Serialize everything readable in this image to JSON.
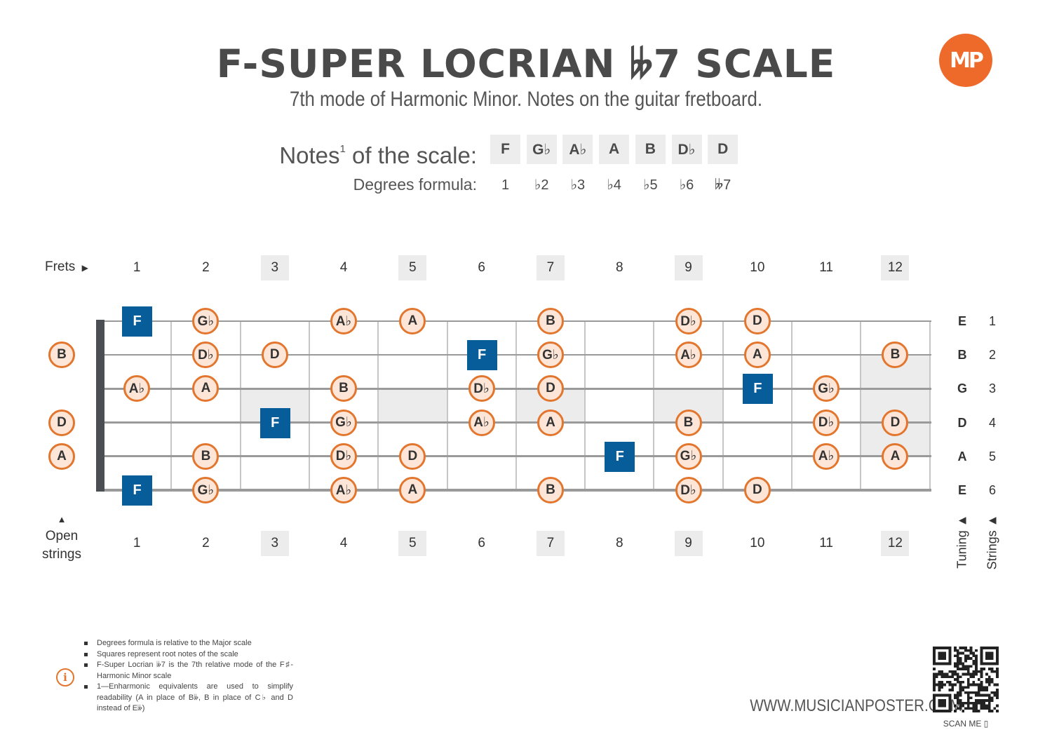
{
  "title": "F-SUPER LOCRIAN 𝄫7 SCALE",
  "subtitle": "7th mode of Harmonic Minor. Notes on the guitar fretboard.",
  "logo_text": "MP",
  "notes_label": "Notes",
  "notes_label_sup": "1",
  "notes_label_tail": " of the scale:",
  "degrees_label": "Degrees formula:",
  "scale_notes": [
    "F",
    "G♭",
    "A♭",
    "A",
    "B",
    "D♭",
    "D"
  ],
  "degrees": [
    "1",
    "♭2",
    "♭3",
    "♭4",
    "♭5",
    "♭6",
    "𝄫7"
  ],
  "frets_label": "Frets",
  "frets_arrow": "▶",
  "fret_numbers": [
    "1",
    "2",
    "3",
    "4",
    "5",
    "6",
    "7",
    "8",
    "9",
    "10",
    "11",
    "12"
  ],
  "highlighted_frets": [
    3,
    5,
    7,
    9,
    12
  ],
  "open_strings_arrow": "▲",
  "open_strings_line1": "Open",
  "open_strings_line2": "strings",
  "tuning_label": "Tuning ▲",
  "strings_label": "Strings ▲",
  "tuning": [
    "E",
    "B",
    "G",
    "D",
    "A",
    "E"
  ],
  "string_numbers": [
    "1",
    "2",
    "3",
    "4",
    "5",
    "6"
  ],
  "colors": {
    "accent": "#e2762e",
    "dot_fill": "#fde6d7",
    "root": "#075d9a",
    "text": "#4a4a4a"
  },
  "fretboard": [
    {
      "string": 1,
      "fret": 1,
      "note": "F",
      "root": true
    },
    {
      "string": 1,
      "fret": 2,
      "note": "G♭"
    },
    {
      "string": 1,
      "fret": 4,
      "note": "A♭"
    },
    {
      "string": 1,
      "fret": 5,
      "note": "A"
    },
    {
      "string": 1,
      "fret": 7,
      "note": "B"
    },
    {
      "string": 1,
      "fret": 9,
      "note": "D♭"
    },
    {
      "string": 1,
      "fret": 10,
      "note": "D"
    },
    {
      "string": 2,
      "fret": 0,
      "note": "B"
    },
    {
      "string": 2,
      "fret": 2,
      "note": "D♭"
    },
    {
      "string": 2,
      "fret": 3,
      "note": "D"
    },
    {
      "string": 2,
      "fret": 6,
      "note": "F",
      "root": true
    },
    {
      "string": 2,
      "fret": 7,
      "note": "G♭"
    },
    {
      "string": 2,
      "fret": 9,
      "note": "A♭"
    },
    {
      "string": 2,
      "fret": 10,
      "note": "A"
    },
    {
      "string": 2,
      "fret": 12,
      "note": "B"
    },
    {
      "string": 3,
      "fret": 1,
      "note": "A♭"
    },
    {
      "string": 3,
      "fret": 2,
      "note": "A"
    },
    {
      "string": 3,
      "fret": 4,
      "note": "B"
    },
    {
      "string": 3,
      "fret": 6,
      "note": "D♭"
    },
    {
      "string": 3,
      "fret": 7,
      "note": "D"
    },
    {
      "string": 3,
      "fret": 10,
      "note": "F",
      "root": true
    },
    {
      "string": 3,
      "fret": 11,
      "note": "G♭"
    },
    {
      "string": 4,
      "fret": 0,
      "note": "D"
    },
    {
      "string": 4,
      "fret": 3,
      "note": "F",
      "root": true
    },
    {
      "string": 4,
      "fret": 4,
      "note": "G♭"
    },
    {
      "string": 4,
      "fret": 6,
      "note": "A♭"
    },
    {
      "string": 4,
      "fret": 7,
      "note": "A"
    },
    {
      "string": 4,
      "fret": 9,
      "note": "B"
    },
    {
      "string": 4,
      "fret": 11,
      "note": "D♭"
    },
    {
      "string": 4,
      "fret": 12,
      "note": "D"
    },
    {
      "string": 5,
      "fret": 0,
      "note": "A"
    },
    {
      "string": 5,
      "fret": 2,
      "note": "B"
    },
    {
      "string": 5,
      "fret": 4,
      "note": "D♭"
    },
    {
      "string": 5,
      "fret": 5,
      "note": "D"
    },
    {
      "string": 5,
      "fret": 8,
      "note": "F",
      "root": true
    },
    {
      "string": 5,
      "fret": 9,
      "note": "G♭"
    },
    {
      "string": 5,
      "fret": 11,
      "note": "A♭"
    },
    {
      "string": 5,
      "fret": 12,
      "note": "A"
    },
    {
      "string": 6,
      "fret": 1,
      "note": "F",
      "root": true
    },
    {
      "string": 6,
      "fret": 2,
      "note": "G♭"
    },
    {
      "string": 6,
      "fret": 4,
      "note": "A♭"
    },
    {
      "string": 6,
      "fret": 5,
      "note": "A"
    },
    {
      "string": 6,
      "fret": 7,
      "note": "B"
    },
    {
      "string": 6,
      "fret": 9,
      "note": "D♭"
    },
    {
      "string": 6,
      "fret": 10,
      "note": "D"
    }
  ],
  "footnotes": [
    "Degrees formula is relative to the Major scale",
    "Squares represent root notes of the scale",
    "F-Super Locrian 𝄫7 is the 7th relative mode of the F♯-Harmonic Minor scale",
    "1—Enharmonic equivalents are used to simplify readability (A in place of B𝄫, B in place of C♭ and D instead of E𝄫)"
  ],
  "info_icon": "i",
  "website": "WWW.MUSICIANPOSTER.COM",
  "scan_me": "SCAN ME ▯"
}
